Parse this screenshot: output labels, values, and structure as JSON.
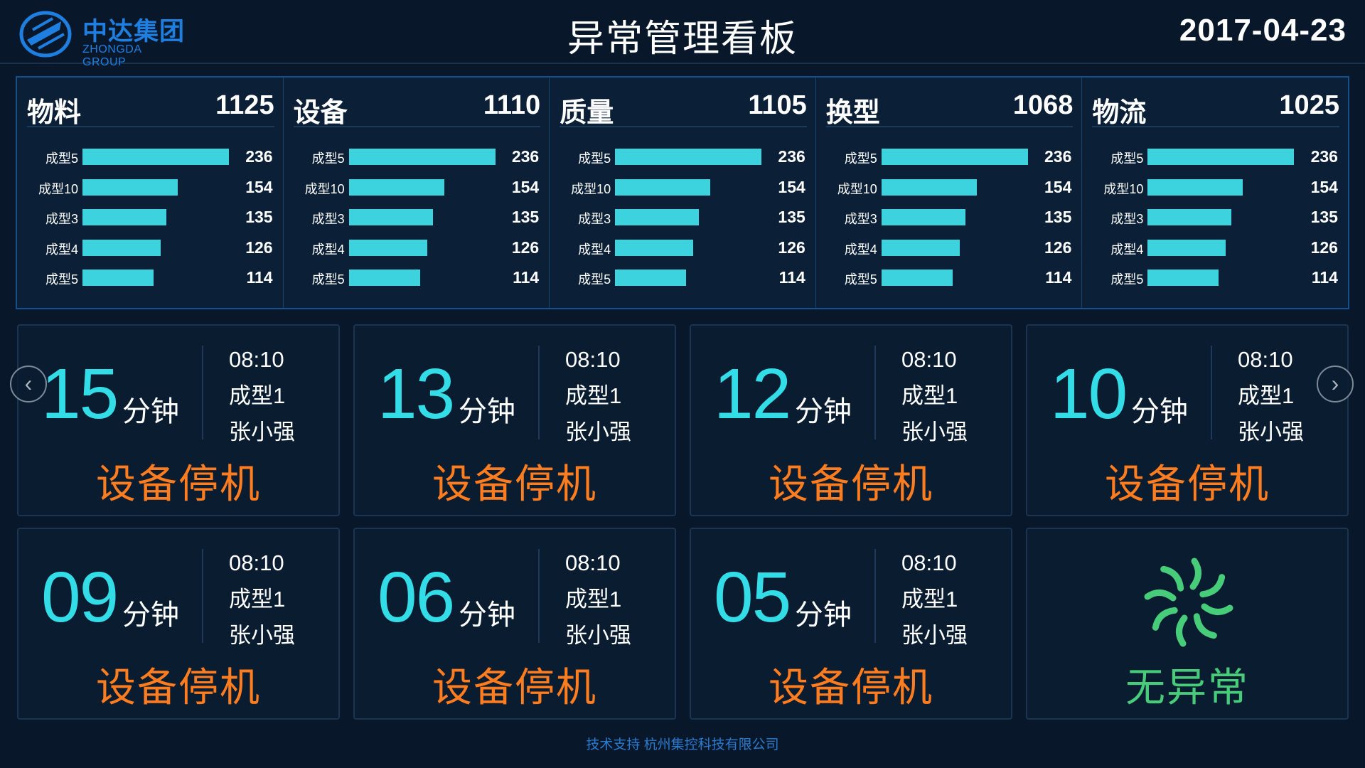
{
  "header": {
    "title": "异常管理看板",
    "date": "2017-04-23",
    "logo": {
      "name_cn": "中达集团",
      "name_en": "ZHONGDA GROUP"
    }
  },
  "categories": [
    {
      "name": "物料",
      "total": "1125",
      "rows": [
        {
          "label": "成型5",
          "value": 236
        },
        {
          "label": "成型10",
          "value": 154
        },
        {
          "label": "成型3",
          "value": 135
        },
        {
          "label": "成型4",
          "value": 126
        },
        {
          "label": "成型5",
          "value": 114
        }
      ]
    },
    {
      "name": "设备",
      "total": "1110",
      "rows": [
        {
          "label": "成型5",
          "value": 236
        },
        {
          "label": "成型10",
          "value": 154
        },
        {
          "label": "成型3",
          "value": 135
        },
        {
          "label": "成型4",
          "value": 126
        },
        {
          "label": "成型5",
          "value": 114
        }
      ]
    },
    {
      "name": "质量",
      "total": "1105",
      "rows": [
        {
          "label": "成型5",
          "value": 236
        },
        {
          "label": "成型10",
          "value": 154
        },
        {
          "label": "成型3",
          "value": 135
        },
        {
          "label": "成型4",
          "value": 126
        },
        {
          "label": "成型5",
          "value": 114
        }
      ]
    },
    {
      "name": "换型",
      "total": "1068",
      "rows": [
        {
          "label": "成型5",
          "value": 236
        },
        {
          "label": "成型10",
          "value": 154
        },
        {
          "label": "成型3",
          "value": 135
        },
        {
          "label": "成型4",
          "value": 126
        },
        {
          "label": "成型5",
          "value": 114
        }
      ]
    },
    {
      "name": "物流",
      "total": "1025",
      "rows": [
        {
          "label": "成型5",
          "value": 236
        },
        {
          "label": "成型10",
          "value": 154
        },
        {
          "label": "成型3",
          "value": 135
        },
        {
          "label": "成型4",
          "value": 126
        },
        {
          "label": "成型5",
          "value": 114
        }
      ]
    }
  ],
  "bar_max": 236,
  "cards": [
    {
      "minutes": "15",
      "unit": "分钟",
      "time": "08:10",
      "line": "成型1",
      "person": "张小强",
      "status": "设备停机"
    },
    {
      "minutes": "13",
      "unit": "分钟",
      "time": "08:10",
      "line": "成型1",
      "person": "张小强",
      "status": "设备停机"
    },
    {
      "minutes": "12",
      "unit": "分钟",
      "time": "08:10",
      "line": "成型1",
      "person": "张小强",
      "status": "设备停机"
    },
    {
      "minutes": "10",
      "unit": "分钟",
      "time": "08:10",
      "line": "成型1",
      "person": "张小强",
      "status": "设备停机"
    },
    {
      "minutes": "09",
      "unit": "分钟",
      "time": "08:10",
      "line": "成型1",
      "person": "张小强",
      "status": "设备停机"
    },
    {
      "minutes": "06",
      "unit": "分钟",
      "time": "08:10",
      "line": "成型1",
      "person": "张小强",
      "status": "设备停机"
    },
    {
      "minutes": "05",
      "unit": "分钟",
      "time": "08:10",
      "line": "成型1",
      "person": "张小强",
      "status": "设备停机"
    }
  ],
  "ok_card": {
    "status": "无异常",
    "icon": "pinwheel-icon"
  },
  "nav": {
    "prev": "‹",
    "next": "›"
  },
  "footer": "技术支持 杭州集控科技有限公司",
  "colors": {
    "bar": "#3cd3df",
    "minutes": "#33dde8",
    "alert": "#ff7d1e",
    "ok": "#47cc7a",
    "accent": "#1f7fe0"
  }
}
